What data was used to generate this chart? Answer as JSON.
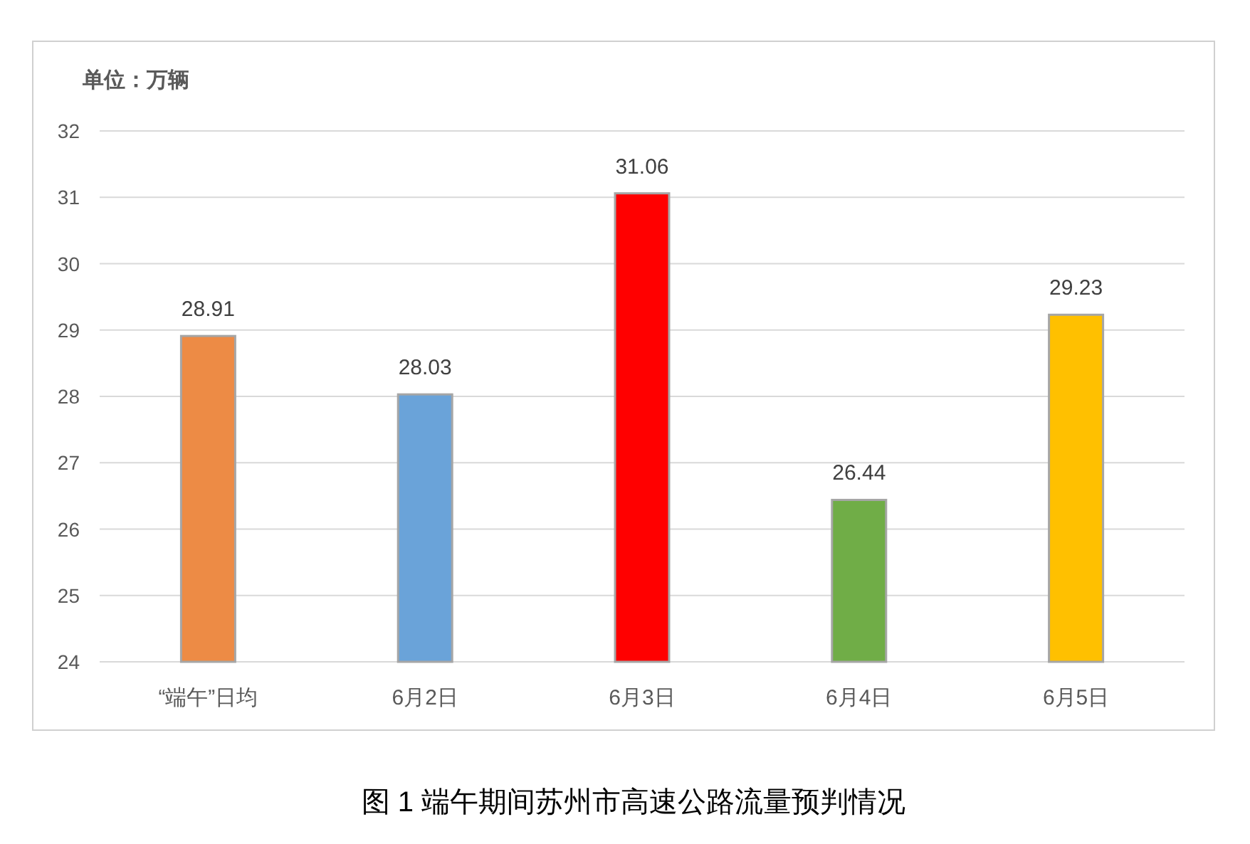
{
  "chart_data": {
    "type": "bar",
    "title": "图 1  端午期间苏州市高速公路流量预判情况",
    "ylabel": "单位：万辆",
    "categories": [
      "“端午”日均",
      "6月2日",
      "6月3日",
      "6月4日",
      "6月5日"
    ],
    "values": [
      28.91,
      28.03,
      31.06,
      26.44,
      29.23
    ],
    "colors": [
      "#ed8b45",
      "#6aa3d9",
      "#ff0000",
      "#70ad47",
      "#ffc000"
    ],
    "ylim": [
      24,
      32
    ],
    "yticks": [
      24,
      25,
      26,
      27,
      28,
      29,
      30,
      31,
      32
    ],
    "grid": "y",
    "data_labels": true
  }
}
